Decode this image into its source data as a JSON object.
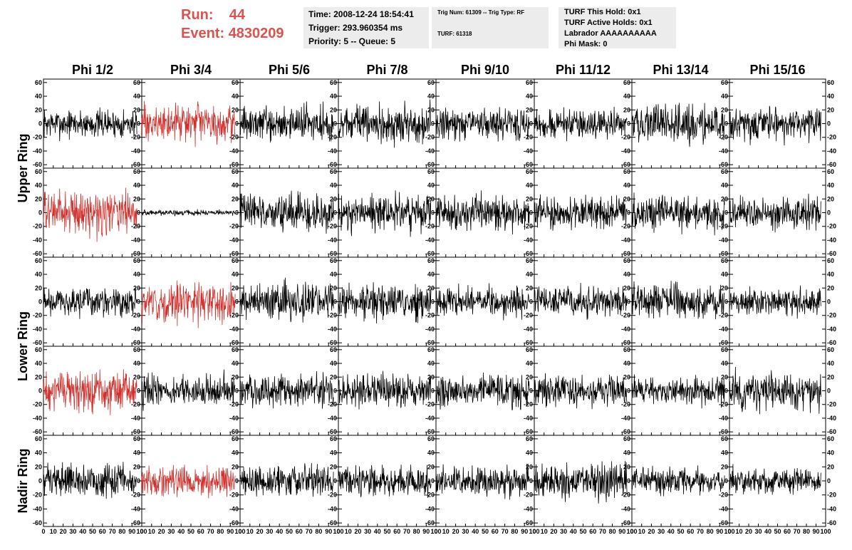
{
  "header": {
    "run_label": "Run:",
    "run_value": "44",
    "event_label": "Event:",
    "event_value": "4830209",
    "time_line": "Time: 2008-12-24 18:54:41",
    "trigger_line": "Trigger: 293.960354 ms",
    "priority_line": "Priority: 5 -- Queue: 5",
    "trig_num_line": "Trig Num: 61309 -- Trig Type: RF",
    "turf_line": "TURF: 61318",
    "turf_this_hold": "TURF This Hold: 0x1",
    "turf_active_holds": "TURF Active Holds: 0x1",
    "labrador": "Labrador AAAAAAAAAA",
    "phi_mask": "Phi Mask: 0"
  },
  "colors": {
    "run_text": "#d9534f",
    "trace_default": "#000000",
    "trace_highlight": "#d0312d",
    "box_bg": "#ececec"
  },
  "chart_data": {
    "type": "line",
    "columns": [
      "Phi 1/2",
      "Phi 3/4",
      "Phi 5/6",
      "Phi 7/8",
      "Phi 9/10",
      "Phi 11/12",
      "Phi 13/14",
      "Phi 15/16"
    ],
    "ring_labels": [
      {
        "label": "Upper Ring",
        "rows": [
          0,
          1
        ]
      },
      {
        "label": "Lower Ring",
        "rows": [
          2,
          3
        ]
      },
      {
        "label": "Nadir Ring",
        "rows": [
          4
        ]
      }
    ],
    "xlim": [
      0,
      100
    ],
    "ylim": [
      -65,
      65
    ],
    "x_ticks": [
      "0",
      "10",
      "20",
      "30",
      "40",
      "50",
      "60",
      "70",
      "80",
      "90",
      "100"
    ],
    "y_ticks": [
      "60",
      "40",
      "20",
      "0",
      "-20",
      "-40",
      "-60"
    ],
    "trace_x_range": [
      0,
      95
    ],
    "trace_amplitudes": [
      [
        10,
        13,
        12,
        13,
        11,
        10,
        13,
        12
      ],
      [
        15,
        2,
        13,
        13,
        12,
        11,
        12,
        12
      ],
      [
        10,
        14,
        13,
        12,
        10,
        11,
        12,
        10
      ],
      [
        14,
        11,
        12,
        12,
        11,
        11,
        10,
        13
      ],
      [
        11,
        10,
        11,
        10,
        10,
        12,
        9,
        9
      ]
    ],
    "highlighted_panels": [
      [
        0,
        1
      ],
      [
        1,
        0
      ],
      [
        2,
        1
      ],
      [
        3,
        0
      ],
      [
        4,
        1
      ]
    ]
  }
}
